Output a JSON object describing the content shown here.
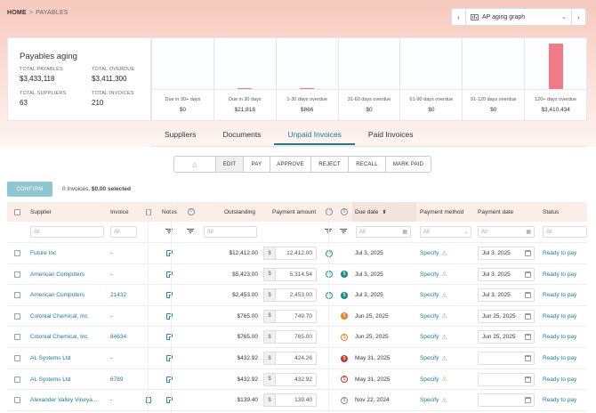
{
  "breadcrumb": {
    "home": "HOME",
    "sep": ">",
    "current": "PAYABLES"
  },
  "graph_selector": {
    "prev": "‹",
    "label": "AP aging graph",
    "next": "›",
    "icon": "bar-chart-icon"
  },
  "summary": {
    "title": "Payables aging",
    "total_payables_label": "TOTAL PAYABLES",
    "total_payables": "$3,433,118",
    "total_overdue_label": "TOTAL OVERDUE",
    "total_overdue": "$3,411,300",
    "total_suppliers_label": "TOTAL SUPPLIERS",
    "total_suppliers": "63",
    "total_invoices_label": "TOTAL INVOICES",
    "total_invoices": "210"
  },
  "chart_data": {
    "type": "bar",
    "categories": [
      "Due in 30+ days",
      "Due in 30 days",
      "1-30 days overdue",
      "31-60 days overdue",
      "61-90 days overdue",
      "91-120 days overdue",
      "120+ days overdue"
    ],
    "value_labels": [
      "$0",
      "$21,818",
      "$866",
      "$0",
      "$0",
      "$0",
      "$3,410,434"
    ],
    "values": [
      0,
      21818,
      866,
      0,
      0,
      0,
      3410434
    ],
    "ylim": [
      0,
      3600000
    ],
    "grid": false,
    "bar_color": "#f07a86"
  },
  "tabs": [
    "Suppliers",
    "Documents",
    "Unpaid Invoices",
    "Paid Invoices"
  ],
  "active_tab": 2,
  "actions": {
    "home_icon": "⌂",
    "edit": "EDIT",
    "pay": "PAY",
    "approve": "APPROVE",
    "reject": "REJECT",
    "recall": "RECALL",
    "mark_paid": "MARK PAID"
  },
  "confirm_label": "CONFIRM",
  "selection": {
    "count": "0 Invoices,",
    "amount": "$0.00 selected"
  },
  "columns": {
    "supplier": "Supplier",
    "invoice": "Invoice",
    "notes": "Notes",
    "outstanding": "Outstanding",
    "payment_amount": "Payment amount",
    "due_date": "Due date",
    "payment_method": "Payment method",
    "payment_date": "Payment date",
    "status": "Status"
  },
  "filters": {
    "all": "All"
  },
  "rows": [
    {
      "supplier": "Future Inc",
      "invoice": "-",
      "invoice_link": false,
      "outstanding": "$12,412.00",
      "amount": "12,412.00",
      "s1": "outline",
      "s2": "",
      "due": "Jul 3, 2025",
      "method": "Specify",
      "pay_date": "Jul 3, 2025",
      "status": "Ready to pay",
      "doc": false
    },
    {
      "supplier": "American Computers",
      "invoice": "-",
      "invoice_link": false,
      "outstanding": "$5,423.00",
      "amount": "5,314.54",
      "s1": "outline",
      "s2": "teal",
      "due": "Jul 3, 2025",
      "method": "Specify",
      "pay_date": "Jul 3, 2025",
      "status": "Ready to pay",
      "doc": false
    },
    {
      "supplier": "American Computers",
      "invoice": "21432",
      "invoice_link": true,
      "outstanding": "$2,453.00",
      "amount": "2,453.00",
      "s1": "outline",
      "s2": "teal",
      "due": "Jul 3, 2025",
      "method": "Specify",
      "pay_date": "Jul 3, 2025",
      "status": "Ready to pay",
      "doc": false
    },
    {
      "supplier": "Colonial Chemical, Inc",
      "invoice": "-",
      "invoice_link": false,
      "outstanding": "$765.00",
      "amount": "749.70",
      "s1": "",
      "s2": "orange",
      "due": "Jun 25, 2025",
      "method": "Specify",
      "pay_date": "Jun 25, 2025",
      "status": "Ready to pay",
      "doc": false
    },
    {
      "supplier": "Colonial Chemical, Inc",
      "invoice": "84634",
      "invoice_link": true,
      "outstanding": "$765.00",
      "amount": "765.00",
      "s1": "",
      "s2": "orange-o",
      "due": "Jun 25, 2025",
      "method": "Specify",
      "pay_date": "Jun 25, 2025",
      "status": "Ready to pay",
      "doc": false
    },
    {
      "supplier": "AL Systems Ltd",
      "invoice": "-",
      "invoice_link": false,
      "outstanding": "$432.92",
      "amount": "424.26",
      "s1": "",
      "s2": "red",
      "due": "May 31, 2025",
      "method": "Specify",
      "pay_date": "",
      "status": "Ready to pay",
      "doc": false
    },
    {
      "supplier": "AL Systems Ltd",
      "invoice": "6789",
      "invoice_link": true,
      "outstanding": "$432.92",
      "amount": "432.92",
      "s1": "",
      "s2": "red-o",
      "due": "May 31, 2025",
      "method": "Specify",
      "pay_date": "",
      "status": "Ready to pay",
      "doc": false
    },
    {
      "supplier": "Alexander Valley Vineya...",
      "invoice": "-",
      "invoice_link": false,
      "outstanding": "$139.40",
      "amount": "139.40",
      "s1": "",
      "s2": "gray-o",
      "due": "Nov 22, 2024",
      "method": "Specify",
      "pay_date": "",
      "status": "Ready to pay",
      "doc": true
    }
  ]
}
